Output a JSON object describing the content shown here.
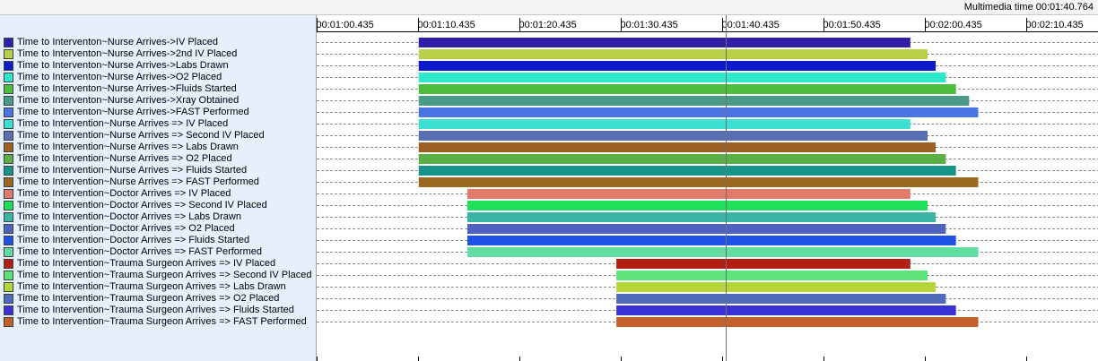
{
  "header": {
    "multimedia_time": "Multimedia time 00:01:40.764"
  },
  "timeline": {
    "tick_labels": [
      "00:01:00.435",
      "00:01:10.435",
      "00:01:20.435",
      "00:01:30.435",
      "00:01:40.435",
      "00:01:50.435",
      "00:02:00.435",
      "00:02:10.435"
    ],
    "tick_seconds": [
      60.435,
      70.435,
      80.435,
      90.435,
      100.435,
      110.435,
      120.435,
      130.435
    ],
    "cursor_seconds": 100.764
  },
  "rows": [
    {
      "label": "Time to Interventon~Nurse Arrives->IV Placed",
      "color": "#2f1fa6",
      "start": 70.5,
      "end": 119.0
    },
    {
      "label": "Time to Interventon~Nurse Arrives->2nd IV Placed",
      "color": "#b8d048",
      "start": 70.5,
      "end": 120.7
    },
    {
      "label": "Time to Interventon~Nurse Arrives->Labs Drawn",
      "color": "#0e1bc8",
      "start": 70.5,
      "end": 121.5
    },
    {
      "label": "Time to Interventon~Nurse Arrives->O2 Placed",
      "color": "#2ee8cc",
      "start": 70.5,
      "end": 122.5
    },
    {
      "label": "Time to Interventon~Nurse Arrives->Fluids Started",
      "color": "#4cbd3c",
      "start": 70.5,
      "end": 123.5
    },
    {
      "label": "Time to Interventon~Nurse Arrives->Xray Obtained",
      "color": "#4a9a88",
      "start": 70.5,
      "end": 124.8
    },
    {
      "label": "Time to Interventon~Nurse Arrives->FAST Performed",
      "color": "#4a74e2",
      "start": 70.5,
      "end": 125.7
    },
    {
      "label": "Time to Intervention~Nurse Arrives => IV Placed",
      "color": "#3ce0d2",
      "start": 70.5,
      "end": 119.0
    },
    {
      "label": "Time to Intervention~Nurse Arrives => Second IV Placed",
      "color": "#5a6eb4",
      "start": 70.5,
      "end": 120.7
    },
    {
      "label": "Time to Intervention~Nurse Arrives => Labs Drawn",
      "color": "#9c6024",
      "start": 70.5,
      "end": 121.5
    },
    {
      "label": "Time to Intervention~Nurse Arrives => O2 Placed",
      "color": "#5aae46",
      "start": 70.5,
      "end": 122.5
    },
    {
      "label": "Time to Intervention~Nurse Arrives => Fluids Started",
      "color": "#16948a",
      "start": 70.5,
      "end": 123.5
    },
    {
      "label": "Time to Intervention~Nurse Arrives => FAST Performed",
      "color": "#9c6a1e",
      "start": 70.5,
      "end": 125.7
    },
    {
      "label": "Time to Intervention~Doctor Arrives => IV Placed",
      "color": "#e27a6c",
      "start": 75.3,
      "end": 119.0
    },
    {
      "label": "Time to Intervention~Doctor Arrives => Second IV Placed",
      "color": "#1ee05a",
      "start": 75.3,
      "end": 120.7
    },
    {
      "label": "Time to Intervention~Doctor Arrives => Labs Drawn",
      "color": "#3ab4a4",
      "start": 75.3,
      "end": 121.5
    },
    {
      "label": "Time to Intervention~Doctor Arrives => O2 Placed",
      "color": "#4e62c0",
      "start": 75.3,
      "end": 122.5
    },
    {
      "label": "Time to Intervention~Doctor Arrives => Fluids Started",
      "color": "#1e52e4",
      "start": 75.3,
      "end": 123.5
    },
    {
      "label": "Time to Intervention~Doctor Arrives => FAST Performed",
      "color": "#62dca0",
      "start": 75.3,
      "end": 125.7
    },
    {
      "label": "Time to Intervention~Trauma Surgeon Arrives => IV Placed",
      "color": "#b01e14",
      "start": 90.0,
      "end": 119.0
    },
    {
      "label": "Time to Intervention~Trauma Surgeon Arrives => Second IV Placed",
      "color": "#5ee27a",
      "start": 90.0,
      "end": 120.7
    },
    {
      "label": "Time to Intervention~Trauma Surgeon Arrives => Labs Drawn",
      "color": "#b4d63a",
      "start": 90.0,
      "end": 121.5
    },
    {
      "label": "Time to Intervention~Trauma Surgeon Arrives => O2 Placed",
      "color": "#4e6ab8",
      "start": 90.0,
      "end": 122.5
    },
    {
      "label": "Time to Intervention~Trauma Surgeon Arrives => Fluids Started",
      "color": "#3a32d4",
      "start": 90.0,
      "end": 123.5
    },
    {
      "label": "Time to Intervention~Trauma Surgeon Arrives => FAST Performed",
      "color": "#c4602a",
      "start": 90.0,
      "end": 125.7
    }
  ]
}
